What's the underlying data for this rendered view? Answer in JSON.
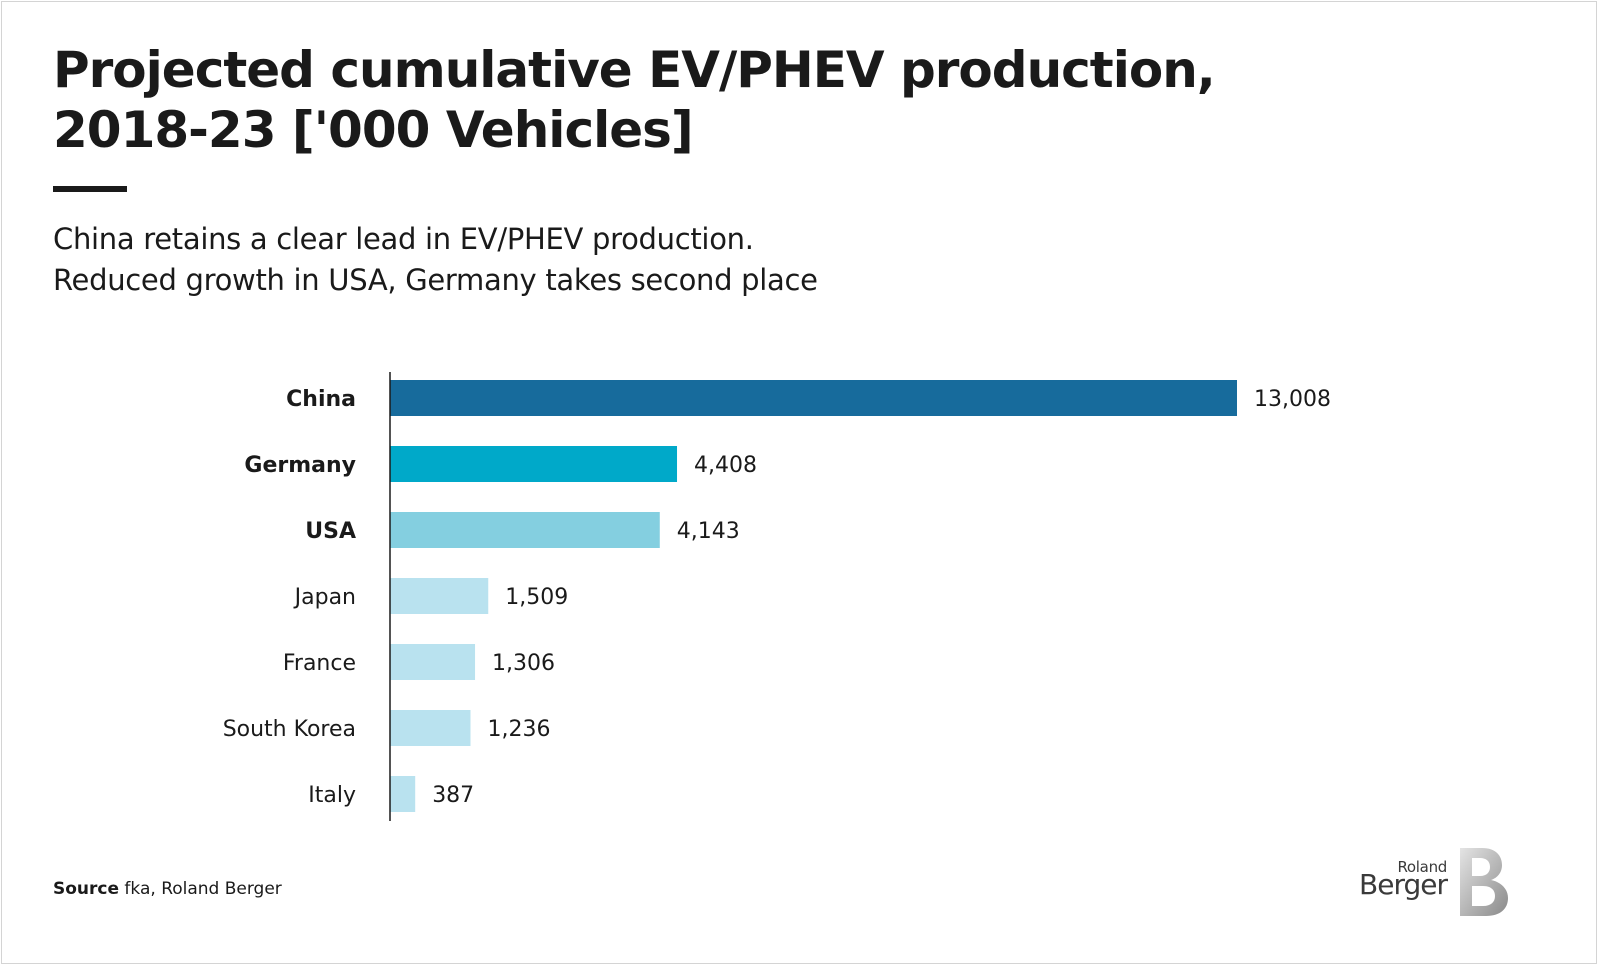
{
  "title_line1": "Projected cumulative EV/PHEV production,",
  "title_line2": "2018-23 ['000 Vehicles]",
  "subtitle_line1": "China retains a clear lead in EV/PHEV production.",
  "subtitle_line2": "Reduced growth in USA, Germany takes second place",
  "source_label": "Source",
  "source_text": " fka, Roland Berger",
  "logo": {
    "small": "Roland",
    "big": "Berger",
    "mark_icon": "roland-berger-b-mark"
  },
  "chart_data": {
    "type": "bar",
    "orientation": "horizontal",
    "title": "Projected cumulative EV/PHEV production, 2018-23 ['000 Vehicles]",
    "categories": [
      "China",
      "Germany",
      "USA",
      "Japan",
      "France",
      "South Korea",
      "Italy"
    ],
    "values": [
      13008,
      4408,
      4143,
      1509,
      1306,
      1236,
      387
    ],
    "value_labels": [
      "13,008",
      "4,408",
      "4,143",
      "1,509",
      "1,306",
      "1,236",
      "387"
    ],
    "bold_categories": [
      true,
      true,
      true,
      false,
      false,
      false,
      false
    ],
    "colors": [
      "#176b9c",
      "#00a9c9",
      "#84cfe0",
      "#b9e2ef",
      "#b9e2ef",
      "#b9e2ef",
      "#b9e2ef"
    ],
    "xlim": [
      0,
      13008
    ],
    "grid": false,
    "legend": "none"
  }
}
